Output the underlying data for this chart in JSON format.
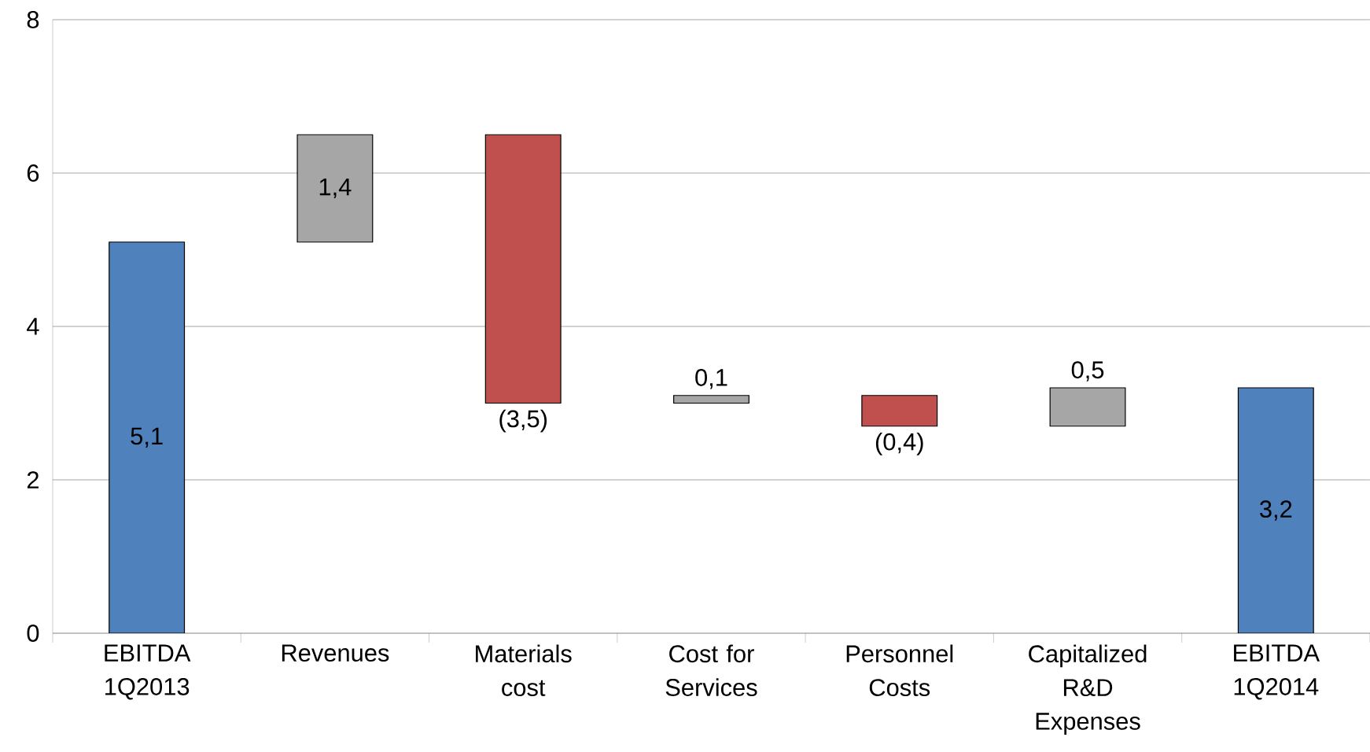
{
  "chart_data": {
    "type": "bar",
    "categories": [
      "EBITDA 1Q2013",
      "Revenues",
      "Materials cost",
      "Cost for Services",
      "Personnel Costs",
      "Capitalized R&D Expenses",
      "EBITDA 1Q2014"
    ],
    "values": [
      5.1,
      1.4,
      -3.5,
      0.1,
      -0.4,
      0.5,
      3.2
    ],
    "base": [
      0,
      5.1,
      6.5,
      3.0,
      3.1,
      2.7,
      0
    ],
    "colors": [
      "#4f81bd",
      "#a6a6a6",
      "#c0504d",
      "#a6a6a6",
      "#c0504d",
      "#a6a6a6",
      "#4f81bd"
    ],
    "value_labels": [
      "5,1",
      "1,4",
      "(3,5)",
      "0,1",
      "(0,4)",
      "0,5",
      "3,2"
    ],
    "ylim": [
      0,
      8
    ],
    "yticks": [
      0,
      2,
      4,
      6,
      8
    ],
    "grid": "y"
  }
}
